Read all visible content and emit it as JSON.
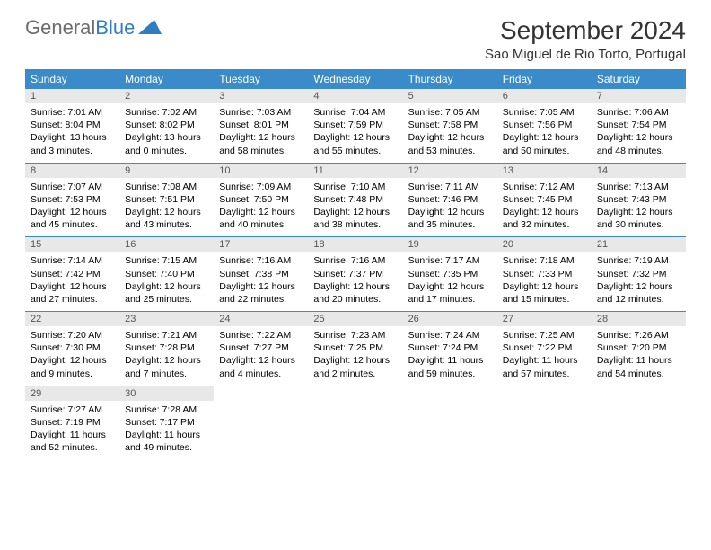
{
  "logo_text_1": "General",
  "logo_text_2": "Blue",
  "month_title": "September 2024",
  "location": "Sao Miguel de Rio Torto, Portugal",
  "colors": {
    "header_bg": "#3a8bc9",
    "header_text": "#ffffff",
    "daynum_bg": "#e8e8e8",
    "daynum_text": "#555555",
    "title_text": "#333333",
    "logo_gray": "#6b6b6b",
    "logo_blue": "#2f7ec2",
    "border": "#3a8bc9",
    "body_text": "#000000",
    "page_bg": "#ffffff"
  },
  "day_names": [
    "Sunday",
    "Monday",
    "Tuesday",
    "Wednesday",
    "Thursday",
    "Friday",
    "Saturday"
  ],
  "days": [
    {
      "n": "1",
      "sunrise": "Sunrise: 7:01 AM",
      "sunset": "Sunset: 8:04 PM",
      "daylight": "Daylight: 13 hours and 3 minutes."
    },
    {
      "n": "2",
      "sunrise": "Sunrise: 7:02 AM",
      "sunset": "Sunset: 8:02 PM",
      "daylight": "Daylight: 13 hours and 0 minutes."
    },
    {
      "n": "3",
      "sunrise": "Sunrise: 7:03 AM",
      "sunset": "Sunset: 8:01 PM",
      "daylight": "Daylight: 12 hours and 58 minutes."
    },
    {
      "n": "4",
      "sunrise": "Sunrise: 7:04 AM",
      "sunset": "Sunset: 7:59 PM",
      "daylight": "Daylight: 12 hours and 55 minutes."
    },
    {
      "n": "5",
      "sunrise": "Sunrise: 7:05 AM",
      "sunset": "Sunset: 7:58 PM",
      "daylight": "Daylight: 12 hours and 53 minutes."
    },
    {
      "n": "6",
      "sunrise": "Sunrise: 7:05 AM",
      "sunset": "Sunset: 7:56 PM",
      "daylight": "Daylight: 12 hours and 50 minutes."
    },
    {
      "n": "7",
      "sunrise": "Sunrise: 7:06 AM",
      "sunset": "Sunset: 7:54 PM",
      "daylight": "Daylight: 12 hours and 48 minutes."
    },
    {
      "n": "8",
      "sunrise": "Sunrise: 7:07 AM",
      "sunset": "Sunset: 7:53 PM",
      "daylight": "Daylight: 12 hours and 45 minutes."
    },
    {
      "n": "9",
      "sunrise": "Sunrise: 7:08 AM",
      "sunset": "Sunset: 7:51 PM",
      "daylight": "Daylight: 12 hours and 43 minutes."
    },
    {
      "n": "10",
      "sunrise": "Sunrise: 7:09 AM",
      "sunset": "Sunset: 7:50 PM",
      "daylight": "Daylight: 12 hours and 40 minutes."
    },
    {
      "n": "11",
      "sunrise": "Sunrise: 7:10 AM",
      "sunset": "Sunset: 7:48 PM",
      "daylight": "Daylight: 12 hours and 38 minutes."
    },
    {
      "n": "12",
      "sunrise": "Sunrise: 7:11 AM",
      "sunset": "Sunset: 7:46 PM",
      "daylight": "Daylight: 12 hours and 35 minutes."
    },
    {
      "n": "13",
      "sunrise": "Sunrise: 7:12 AM",
      "sunset": "Sunset: 7:45 PM",
      "daylight": "Daylight: 12 hours and 32 minutes."
    },
    {
      "n": "14",
      "sunrise": "Sunrise: 7:13 AM",
      "sunset": "Sunset: 7:43 PM",
      "daylight": "Daylight: 12 hours and 30 minutes."
    },
    {
      "n": "15",
      "sunrise": "Sunrise: 7:14 AM",
      "sunset": "Sunset: 7:42 PM",
      "daylight": "Daylight: 12 hours and 27 minutes."
    },
    {
      "n": "16",
      "sunrise": "Sunrise: 7:15 AM",
      "sunset": "Sunset: 7:40 PM",
      "daylight": "Daylight: 12 hours and 25 minutes."
    },
    {
      "n": "17",
      "sunrise": "Sunrise: 7:16 AM",
      "sunset": "Sunset: 7:38 PM",
      "daylight": "Daylight: 12 hours and 22 minutes."
    },
    {
      "n": "18",
      "sunrise": "Sunrise: 7:16 AM",
      "sunset": "Sunset: 7:37 PM",
      "daylight": "Daylight: 12 hours and 20 minutes."
    },
    {
      "n": "19",
      "sunrise": "Sunrise: 7:17 AM",
      "sunset": "Sunset: 7:35 PM",
      "daylight": "Daylight: 12 hours and 17 minutes."
    },
    {
      "n": "20",
      "sunrise": "Sunrise: 7:18 AM",
      "sunset": "Sunset: 7:33 PM",
      "daylight": "Daylight: 12 hours and 15 minutes."
    },
    {
      "n": "21",
      "sunrise": "Sunrise: 7:19 AM",
      "sunset": "Sunset: 7:32 PM",
      "daylight": "Daylight: 12 hours and 12 minutes."
    },
    {
      "n": "22",
      "sunrise": "Sunrise: 7:20 AM",
      "sunset": "Sunset: 7:30 PM",
      "daylight": "Daylight: 12 hours and 9 minutes."
    },
    {
      "n": "23",
      "sunrise": "Sunrise: 7:21 AM",
      "sunset": "Sunset: 7:28 PM",
      "daylight": "Daylight: 12 hours and 7 minutes."
    },
    {
      "n": "24",
      "sunrise": "Sunrise: 7:22 AM",
      "sunset": "Sunset: 7:27 PM",
      "daylight": "Daylight: 12 hours and 4 minutes."
    },
    {
      "n": "25",
      "sunrise": "Sunrise: 7:23 AM",
      "sunset": "Sunset: 7:25 PM",
      "daylight": "Daylight: 12 hours and 2 minutes."
    },
    {
      "n": "26",
      "sunrise": "Sunrise: 7:24 AM",
      "sunset": "Sunset: 7:24 PM",
      "daylight": "Daylight: 11 hours and 59 minutes."
    },
    {
      "n": "27",
      "sunrise": "Sunrise: 7:25 AM",
      "sunset": "Sunset: 7:22 PM",
      "daylight": "Daylight: 11 hours and 57 minutes."
    },
    {
      "n": "28",
      "sunrise": "Sunrise: 7:26 AM",
      "sunset": "Sunset: 7:20 PM",
      "daylight": "Daylight: 11 hours and 54 minutes."
    },
    {
      "n": "29",
      "sunrise": "Sunrise: 7:27 AM",
      "sunset": "Sunset: 7:19 PM",
      "daylight": "Daylight: 11 hours and 52 minutes."
    },
    {
      "n": "30",
      "sunrise": "Sunrise: 7:28 AM",
      "sunset": "Sunset: 7:17 PM",
      "daylight": "Daylight: 11 hours and 49 minutes."
    }
  ]
}
